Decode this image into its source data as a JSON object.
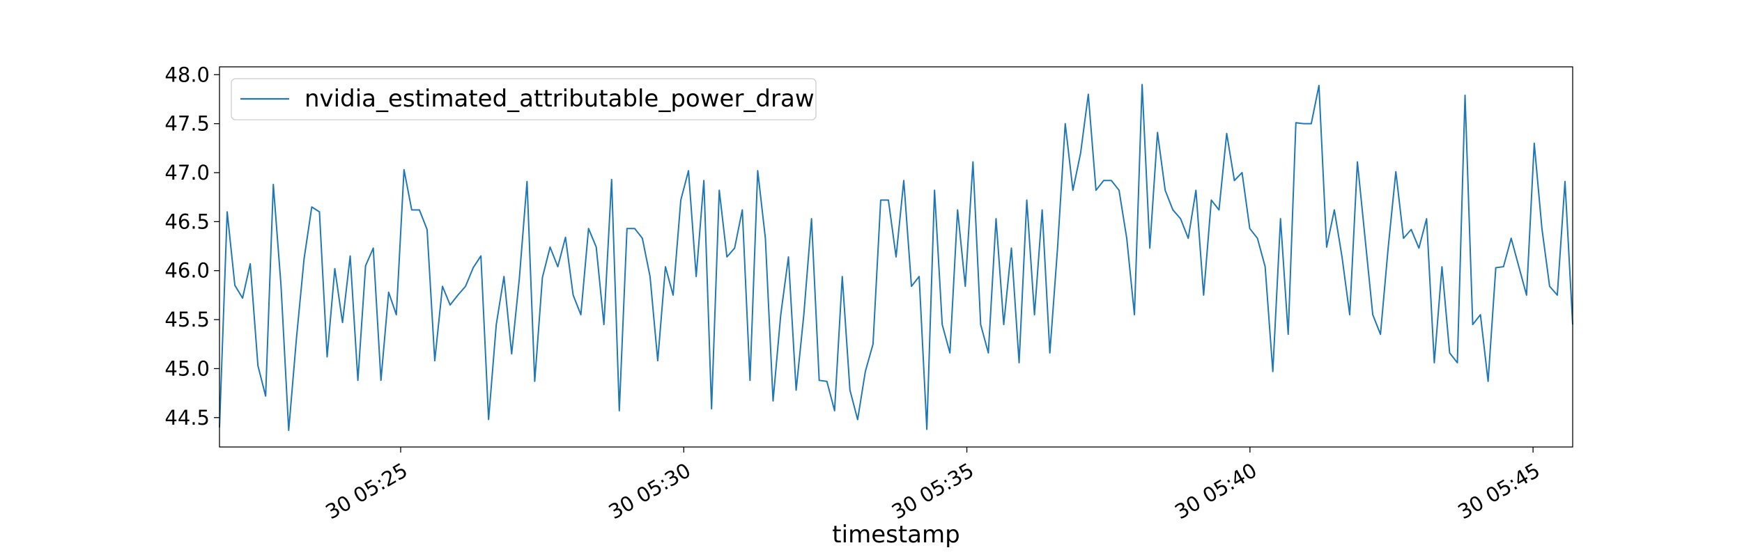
{
  "chart_data": {
    "type": "line",
    "xlabel": "timestamp",
    "ylabel": "",
    "x_start": "30 05:21:48",
    "x_end": "30 05:45:42",
    "xlim": [
      "30 05:21:48",
      "30 05:45:42"
    ],
    "ylim": [
      44.2,
      48.08
    ],
    "x_ticks": [
      "30 05:25",
      "30 05:30",
      "30 05:35",
      "30 05:40",
      "30 05:45"
    ],
    "y_ticks": [
      "44.5",
      "45.0",
      "45.5",
      "46.0",
      "46.5",
      "47.0",
      "47.5",
      "48.0"
    ],
    "grid": false,
    "legend_position": "top-left",
    "color": "#1f77b4",
    "series": [
      {
        "name": "nvidia_estimated_attributable_power_draw",
        "values": [
          44.4,
          46.6,
          45.85,
          45.72,
          46.07,
          45.03,
          44.72,
          46.88,
          45.85,
          44.37,
          45.3,
          46.12,
          46.65,
          46.6,
          45.12,
          46.02,
          45.47,
          46.15,
          44.88,
          46.05,
          46.23,
          44.88,
          45.78,
          45.55,
          47.03,
          46.62,
          46.62,
          46.42,
          45.08,
          45.84,
          45.65,
          45.75,
          45.84,
          46.03,
          46.15,
          44.48,
          45.45,
          45.94,
          45.15,
          45.92,
          46.91,
          44.87,
          45.93,
          46.24,
          46.04,
          46.34,
          45.75,
          45.55,
          46.43,
          46.24,
          45.45,
          46.93,
          44.57,
          46.43,
          46.43,
          46.33,
          45.94,
          45.08,
          46.04,
          45.75,
          46.72,
          47.02,
          45.94,
          46.92,
          44.59,
          46.82,
          46.14,
          46.23,
          46.62,
          44.88,
          47.02,
          46.33,
          44.67,
          45.55,
          46.14,
          44.78,
          45.55,
          46.53,
          44.88,
          44.87,
          44.57,
          45.94,
          44.78,
          44.48,
          44.97,
          45.25,
          46.72,
          46.72,
          46.14,
          46.92,
          45.84,
          45.94,
          44.38,
          46.82,
          45.45,
          45.16,
          46.62,
          45.84,
          47.11,
          45.45,
          45.16,
          46.53,
          45.45,
          46.23,
          45.06,
          46.72,
          45.55,
          46.62,
          45.16,
          46.23,
          47.5,
          46.82,
          47.2,
          47.8,
          46.82,
          46.92,
          46.92,
          46.82,
          46.33,
          45.55,
          47.9,
          46.23,
          47.41,
          46.82,
          46.62,
          46.53,
          46.33,
          46.82,
          45.75,
          46.72,
          46.62,
          47.4,
          46.92,
          47.0,
          46.43,
          46.33,
          46.04,
          44.97,
          46.53,
          45.35,
          47.51,
          47.5,
          47.5,
          47.89,
          46.24,
          46.62,
          46.14,
          45.55,
          47.11,
          46.33,
          45.55,
          45.35,
          46.23,
          47.01,
          46.33,
          46.42,
          46.23,
          46.53,
          45.06,
          46.04,
          45.16,
          45.06,
          47.79,
          45.45,
          45.55,
          44.87,
          46.03,
          46.04,
          46.33,
          46.04,
          45.75,
          47.3,
          46.43,
          45.84,
          45.75,
          46.91,
          45.45
        ]
      }
    ]
  }
}
